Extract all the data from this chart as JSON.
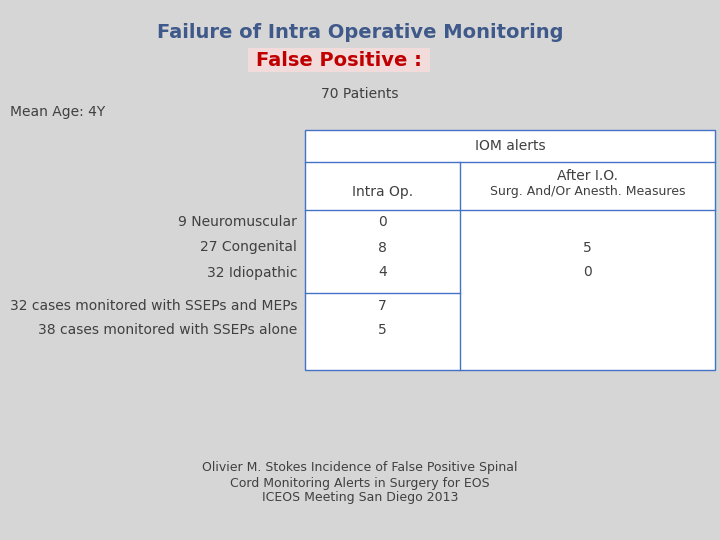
{
  "title1": "Failure of Intra Operative Monitoring",
  "title2": "False Positive :",
  "subtitle": "70 Patients",
  "mean_age": "Mean Age: 4Y",
  "title1_color": "#3F5A8A",
  "title2_color": "#C00000",
  "title2_bg": "#F2DCDB",
  "bg_color": "#D6D6D6",
  "table_header": "IOM alerts",
  "col1_header": "Intra Op.",
  "col2_header_line1": "After I.O.",
  "col2_header_line2": "Surg. And/Or Anesth. Measures",
  "rows": [
    {
      "label": "9 Neuromuscular",
      "col1": "0",
      "col2": ""
    },
    {
      "label": "27 Congenital",
      "col1": "8",
      "col2": "5"
    },
    {
      "label": "32 Idiopathic",
      "col1": "4",
      "col2": "0"
    }
  ],
  "rows2": [
    {
      "label": "32 cases monitored with SSEPs and MEPs",
      "col1": "7",
      "col2": ""
    },
    {
      "label": "38 cases monitored with SSEPs alone",
      "col1": "5",
      "col2": ""
    }
  ],
  "footer_line1": "Olivier M. Stokes Incidence of False Positive Spinal",
  "footer_line2": "Cord Monitoring Alerts in Surgery for EOS",
  "footer_line3": "ICEOS Meeting San Diego 2013",
  "table_border_color": "#4472C4",
  "text_color": "#404040"
}
